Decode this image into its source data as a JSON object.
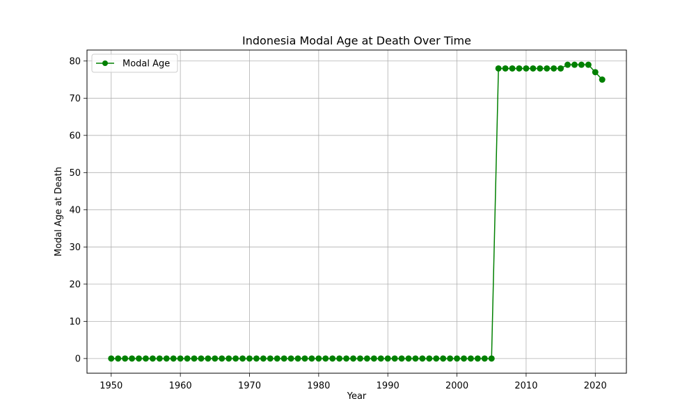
{
  "chart_data": {
    "type": "line",
    "title": "Indonesia Modal Age at Death Over Time",
    "xlabel": "Year",
    "ylabel": "Modal Age at Death",
    "xlim": [
      1946.5,
      2024.5
    ],
    "ylim": [
      -3.95,
      82.95
    ],
    "xticks": [
      1950,
      1960,
      1970,
      1980,
      1990,
      2000,
      2010,
      2020
    ],
    "yticks": [
      0,
      10,
      20,
      30,
      40,
      50,
      60,
      70,
      80
    ],
    "grid": true,
    "legend_position": "top-left",
    "series": [
      {
        "name": "Modal Age",
        "color": "#008000",
        "marker": "circle",
        "x": [
          1950,
          1951,
          1952,
          1953,
          1954,
          1955,
          1956,
          1957,
          1958,
          1959,
          1960,
          1961,
          1962,
          1963,
          1964,
          1965,
          1966,
          1967,
          1968,
          1969,
          1970,
          1971,
          1972,
          1973,
          1974,
          1975,
          1976,
          1977,
          1978,
          1979,
          1980,
          1981,
          1982,
          1983,
          1984,
          1985,
          1986,
          1987,
          1988,
          1989,
          1990,
          1991,
          1992,
          1993,
          1994,
          1995,
          1996,
          1997,
          1998,
          1999,
          2000,
          2001,
          2002,
          2003,
          2004,
          2005,
          2006,
          2007,
          2008,
          2009,
          2010,
          2011,
          2012,
          2013,
          2014,
          2015,
          2016,
          2017,
          2018,
          2019,
          2020,
          2021
        ],
        "y": [
          0,
          0,
          0,
          0,
          0,
          0,
          0,
          0,
          0,
          0,
          0,
          0,
          0,
          0,
          0,
          0,
          0,
          0,
          0,
          0,
          0,
          0,
          0,
          0,
          0,
          0,
          0,
          0,
          0,
          0,
          0,
          0,
          0,
          0,
          0,
          0,
          0,
          0,
          0,
          0,
          0,
          0,
          0,
          0,
          0,
          0,
          0,
          0,
          0,
          0,
          0,
          0,
          0,
          0,
          0,
          0,
          78,
          78,
          78,
          78,
          78,
          78,
          78,
          78,
          78,
          78,
          79,
          79,
          79,
          79,
          77,
          75
        ]
      }
    ]
  }
}
